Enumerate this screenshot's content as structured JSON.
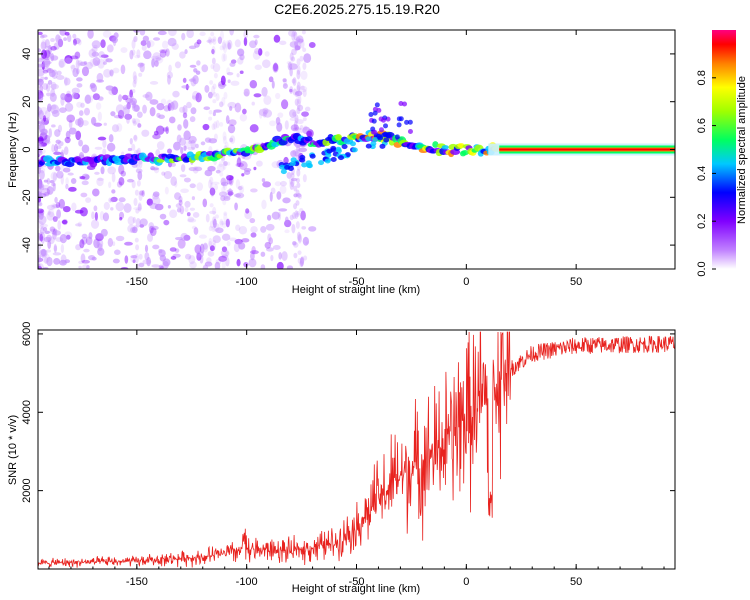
{
  "title": "C2E6.2025.275.15.19.R20",
  "chart_data": [
    {
      "type": "heatmap",
      "name": "spectrogram",
      "xlabel": "Height of straight line (km)",
      "ylabel": "Frequency (Hz)",
      "xlim": [
        -195,
        95
      ],
      "ylim": [
        -50,
        50
      ],
      "xticks": [
        -150,
        -100,
        -50,
        0,
        50
      ],
      "yticks": [
        -40,
        -20,
        0,
        20,
        40
      ],
      "ridge": {
        "x": [
          -190,
          -170,
          -150,
          -140,
          -120,
          -100,
          -90,
          -80,
          -70,
          -60,
          -50,
          -40,
          -30,
          -20,
          -10,
          0,
          10,
          20,
          50,
          95
        ],
        "freq": [
          -5,
          -5,
          -4,
          -4,
          -3,
          -1,
          2,
          5,
          3,
          4,
          5,
          6,
          3,
          1,
          0,
          0,
          0,
          0,
          0,
          0
        ]
      },
      "colorbar": {
        "label": "Normalized spectral amplitude",
        "range": [
          0,
          1
        ],
        "ticks": [
          "0.0",
          "0.2",
          "0.4",
          "0.6",
          "0.8"
        ]
      }
    },
    {
      "type": "line",
      "name": "snr",
      "xlabel": "Height of straight line (km)",
      "ylabel": "SNR (10 * v/v)",
      "xlim": [
        -195,
        95
      ],
      "ylim": [
        0,
        6100
      ],
      "xticks": [
        -150,
        -100,
        -50,
        0,
        50
      ],
      "yticks": [
        2000,
        4000,
        6000
      ],
      "color": "#e8221e",
      "envelope": {
        "x": [
          -195,
          -150,
          -120,
          -100,
          -80,
          -60,
          -50,
          -40,
          -30,
          -20,
          -10,
          0,
          10,
          20,
          30,
          50,
          95
        ],
        "y": [
          150,
          200,
          300,
          500,
          450,
          650,
          1100,
          1800,
          2400,
          2700,
          3200,
          3900,
          4400,
          5100,
          5500,
          5700,
          5750
        ]
      }
    }
  ]
}
